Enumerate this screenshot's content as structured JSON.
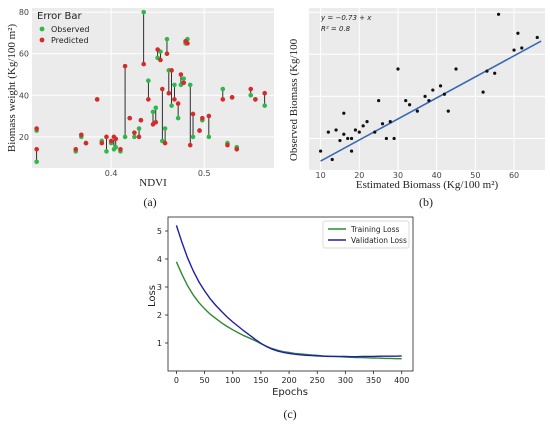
{
  "panel_labels": [
    "(a)",
    "(b)",
    "(c)"
  ],
  "chart_data": [
    {
      "type": "scatter",
      "legend_title": "Error Bar",
      "legend_position": "top-left",
      "xlabel": "NDVI",
      "ylabel": "Biomass weight (Kg/100 m²)",
      "xlim": [
        0.315,
        0.575
      ],
      "ylim": [
        5,
        82
      ],
      "x_ticks": [
        0.4,
        0.5
      ],
      "y_ticks": [
        20,
        40,
        60,
        80
      ],
      "grid": true,
      "colors": {
        "observed": "#2fb84a",
        "predicted": "#d42b2b",
        "error_bar": "#000000"
      },
      "series": [
        {
          "name": "Observed",
          "x": [
            0.32,
            0.32,
            0.362,
            0.368,
            0.373,
            0.385,
            0.39,
            0.395,
            0.4,
            0.403,
            0.405,
            0.41,
            0.415,
            0.42,
            0.425,
            0.43,
            0.432,
            0.435,
            0.44,
            0.445,
            0.448,
            0.45,
            0.453,
            0.455,
            0.458,
            0.46,
            0.462,
            0.465,
            0.468,
            0.472,
            0.475,
            0.478,
            0.48,
            0.482,
            0.485,
            0.488,
            0.495,
            0.498,
            0.505,
            0.52,
            0.525,
            0.53,
            0.535,
            0.55,
            0.555,
            0.565
          ],
          "y": [
            23,
            8,
            13,
            20,
            17,
            38,
            18,
            13,
            17,
            14,
            15,
            13,
            20,
            29,
            20,
            24,
            28,
            80,
            47,
            32,
            34,
            58,
            61,
            18,
            24,
            67,
            52,
            35,
            45,
            29,
            45,
            48,
            65,
            67,
            45,
            20,
            23,
            28,
            20,
            43,
            17,
            39,
            15,
            40,
            38,
            35
          ]
        },
        {
          "name": "Predicted",
          "x": [
            0.32,
            0.32,
            0.362,
            0.368,
            0.373,
            0.385,
            0.39,
            0.395,
            0.4,
            0.403,
            0.405,
            0.41,
            0.415,
            0.42,
            0.425,
            0.43,
            0.432,
            0.435,
            0.44,
            0.445,
            0.448,
            0.45,
            0.453,
            0.455,
            0.458,
            0.46,
            0.462,
            0.465,
            0.468,
            0.472,
            0.475,
            0.478,
            0.48,
            0.482,
            0.485,
            0.488,
            0.495,
            0.498,
            0.505,
            0.52,
            0.525,
            0.53,
            0.535,
            0.55,
            0.555,
            0.565
          ],
          "y": [
            24,
            14,
            14,
            21,
            17,
            38,
            17,
            20,
            18,
            20,
            19,
            14,
            54,
            29,
            22,
            20,
            28,
            55,
            38,
            26,
            27,
            62,
            57,
            43,
            17,
            60,
            41,
            52,
            38,
            36,
            50,
            46,
            66,
            65,
            16,
            31,
            23,
            29,
            30,
            38,
            16,
            39,
            14,
            43,
            38,
            41
          ]
        }
      ]
    },
    {
      "type": "scatter",
      "annotation_equation": "y = −0.73 + x",
      "annotation_r2": "R² = 0.8",
      "xlabel": "Estimated Biomass (Kg/100 m²)",
      "ylabel": "Observed   Biomass   (Kg/100",
      "xlim": [
        7,
        68
      ],
      "ylim": [
        5,
        82
      ],
      "x_ticks": [
        10,
        20,
        30,
        40,
        50,
        60
      ],
      "y_ticks": [
        20,
        40,
        60,
        80
      ],
      "grid": true,
      "fit_line": {
        "intercept": -0.73,
        "slope": 1,
        "color": "#3a69b4",
        "x_range": [
          10,
          67
        ]
      },
      "x": [
        10,
        12,
        13,
        14,
        15,
        16,
        16,
        17,
        18,
        18,
        19,
        20,
        21,
        22,
        24,
        25,
        26,
        27,
        28,
        29,
        30,
        32,
        33,
        35,
        37,
        38,
        39,
        41,
        42,
        43,
        45,
        52,
        53,
        55,
        56,
        60,
        61,
        62,
        66
      ],
      "y": [
        14,
        23,
        10,
        24,
        19,
        22,
        32,
        20,
        20,
        14,
        24,
        23,
        26,
        28,
        23,
        38,
        27,
        20,
        28,
        20,
        53,
        38,
        36,
        33,
        40,
        38,
        43,
        45,
        41,
        33,
        53,
        42,
        52,
        51,
        79,
        62,
        70,
        63,
        68
      ]
    },
    {
      "type": "line",
      "xlabel": "Epochs",
      "ylabel": "Loss",
      "xlim": [
        -15,
        420
      ],
      "ylim": [
        0,
        5.5
      ],
      "x_ticks": [
        0,
        50,
        100,
        150,
        200,
        250,
        300,
        350,
        400
      ],
      "y_ticks": [
        1,
        2,
        3,
        4,
        5
      ],
      "legend_position": "top-right",
      "grid": false,
      "x": [
        0,
        10,
        20,
        30,
        40,
        50,
        60,
        70,
        80,
        90,
        100,
        110,
        120,
        130,
        140,
        150,
        160,
        170,
        180,
        190,
        200,
        210,
        220,
        230,
        240,
        250,
        260,
        270,
        280,
        290,
        300,
        310,
        320,
        330,
        340,
        350,
        360,
        370,
        380,
        390,
        400
      ],
      "series": [
        {
          "name": "Training Loss",
          "color": "#2e8b2e",
          "values": [
            3.9,
            3.44,
            3.04,
            2.71,
            2.44,
            2.22,
            2.03,
            1.87,
            1.72,
            1.59,
            1.47,
            1.36,
            1.26,
            1.17,
            1.08,
            0.98,
            0.88,
            0.8,
            0.74,
            0.69,
            0.66,
            0.63,
            0.61,
            0.59,
            0.57,
            0.56,
            0.54,
            0.53,
            0.52,
            0.51,
            0.5,
            0.49,
            0.48,
            0.48,
            0.47,
            0.46,
            0.46,
            0.45,
            0.45,
            0.44,
            0.44
          ]
        },
        {
          "name": "Validation Loss",
          "color": "#1f1fa8",
          "values": [
            5.2,
            4.58,
            4.03,
            3.57,
            3.18,
            2.86,
            2.58,
            2.34,
            2.13,
            1.93,
            1.75,
            1.59,
            1.43,
            1.28,
            1.13,
            0.99,
            0.87,
            0.78,
            0.71,
            0.66,
            0.63,
            0.6,
            0.58,
            0.56,
            0.55,
            0.54,
            0.53,
            0.52,
            0.52,
            0.52,
            0.52,
            0.51,
            0.51,
            0.52,
            0.52,
            0.52,
            0.53,
            0.53,
            0.53,
            0.53,
            0.54
          ]
        }
      ]
    }
  ]
}
